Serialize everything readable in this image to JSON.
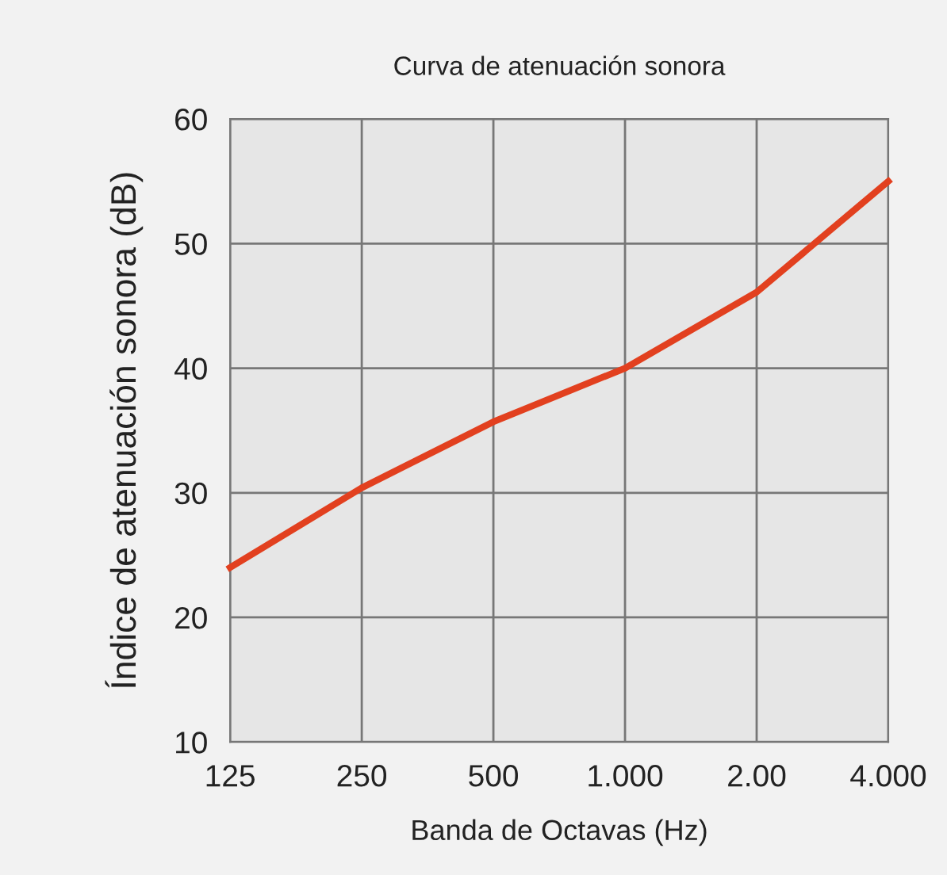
{
  "chart_data": {
    "type": "line",
    "title": "Curva de atenuación sonora",
    "xlabel": "Banda de Octavas (Hz)",
    "ylabel": "Índice de atenuación sonora (dB)",
    "categories": [
      "125",
      "250",
      "500",
      "1.000",
      "2.00",
      "4.000"
    ],
    "series": [
      {
        "color": "#e2401f",
        "values": [
          24,
          30.4,
          35.7,
          40,
          46.1,
          55
        ]
      }
    ],
    "ylim": [
      10,
      60
    ],
    "yticks": [
      10,
      20,
      30,
      40,
      50,
      60
    ],
    "grid": true,
    "marker": "none",
    "line_style": "solid",
    "legend": false
  }
}
